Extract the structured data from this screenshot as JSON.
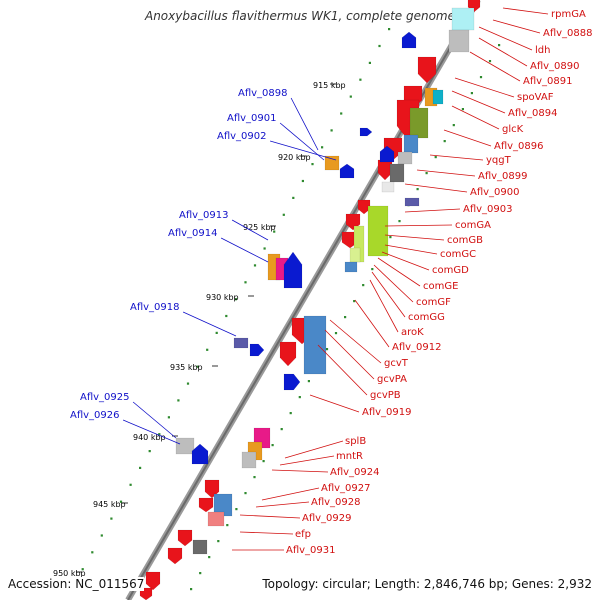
{
  "title": "Anoxybacillus flavithermus WK1, complete genome",
  "accession": "Accession: NC_011567",
  "topology": "Topology: circular; Length: 2,846,746 bp; Genes: 2,932",
  "colors": {
    "red": "#e8141b",
    "blue": "#0a1ad0",
    "label_red": "#d11010",
    "label_blue": "#1010c8"
  },
  "ticks": [
    "915 kbp",
    "920 kbp",
    "925 kbp",
    "930 kbp",
    "935 kbp",
    "940 kbp",
    "945 kbp",
    "950 kbp"
  ],
  "right_labels": [
    "rpmGA",
    "Aflv_0888",
    "ldh",
    "Aflv_0890",
    "Aflv_0891",
    "spoVAF",
    "Aflv_0894",
    "glcK",
    "Aflv_0896",
    "yqgT",
    "Aflv_0899",
    "Aflv_0900",
    "Aflv_0903",
    "comGA",
    "comGB",
    "comGC",
    "comGD",
    "comGE",
    "comGF",
    "comGG",
    "aroK",
    "Aflv_0912",
    "gcvT",
    "gcvPA",
    "gcvPB",
    "Aflv_0919",
    "splB",
    "mntR",
    "Aflv_0924",
    "Aflv_0927",
    "Aflv_0928",
    "Aflv_0929",
    "efp",
    "Aflv_0931"
  ],
  "left_labels": [
    "Aflv_0898",
    "Aflv_0901",
    "Aflv_0902",
    "Aflv_0913",
    "Aflv_0914",
    "Aflv_0918",
    "Aflv_0925",
    "Aflv_0926"
  ]
}
